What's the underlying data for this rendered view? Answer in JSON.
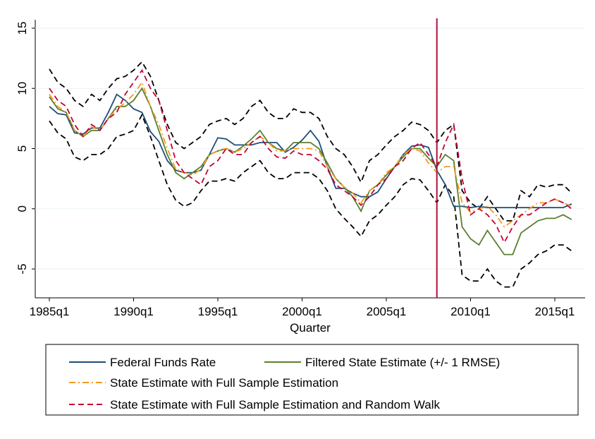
{
  "chart_data": {
    "type": "line",
    "x_label": "Quarter",
    "x": [
      "1985q1",
      "1985q3",
      "1986q1",
      "1986q3",
      "1987q1",
      "1987q3",
      "1988q1",
      "1988q3",
      "1989q1",
      "1989q3",
      "1990q1",
      "1990q3",
      "1991q1",
      "1991q3",
      "1992q1",
      "1992q3",
      "1993q1",
      "1993q3",
      "1994q1",
      "1994q3",
      "1995q1",
      "1995q3",
      "1996q1",
      "1996q3",
      "1997q1",
      "1997q3",
      "1998q1",
      "1998q3",
      "1999q1",
      "1999q3",
      "2000q1",
      "2000q3",
      "2001q1",
      "2001q3",
      "2002q1",
      "2002q3",
      "2003q1",
      "2003q3",
      "2004q1",
      "2004q3",
      "2005q1",
      "2005q3",
      "2006q1",
      "2006q3",
      "2007q1",
      "2007q3",
      "2008q1",
      "2008q3",
      "2009q1",
      "2009q3",
      "2010q1",
      "2010q3",
      "2011q1",
      "2011q3",
      "2012q1",
      "2012q3",
      "2013q1",
      "2013q3",
      "2014q1",
      "2014q3",
      "2015q1",
      "2015q3",
      "2016q1"
    ],
    "xticks": [
      "1985q1",
      "1990q1",
      "1995q1",
      "2000q1",
      "2005q1",
      "2010q1",
      "2015q1"
    ],
    "ylim": [
      -7.4,
      15.7
    ],
    "yticks": [
      -5,
      0,
      5,
      10,
      15
    ],
    "grid": true,
    "vline": "2008q1",
    "vline_color": "#b0103a",
    "series": [
      {
        "color": "#000000",
        "dash": "dashed",
        "values": [
          11.6,
          10.5,
          10.0,
          9.0,
          8.5,
          9.5,
          9.0,
          10.0,
          10.8,
          11.0,
          11.5,
          12.2,
          11.0,
          9.0,
          7.0,
          5.5,
          5.0,
          5.5,
          6.0,
          7.0,
          7.3,
          7.5,
          7.0,
          7.5,
          8.5,
          9.0,
          8.0,
          7.5,
          7.5,
          8.3,
          8.0,
          8.0,
          7.5,
          6.0,
          5.0,
          4.5,
          3.5,
          2.2,
          4.0,
          4.5,
          5.3,
          6.0,
          6.5,
          7.2,
          7.0,
          6.5,
          5.5,
          6.5,
          7.0,
          1.5,
          0.5,
          0.0,
          1.0,
          0.0,
          -1.0,
          -1.0,
          1.5,
          1.0,
          2.0,
          1.8,
          2.0,
          2.0,
          1.3
        ]
      },
      {
        "color": "#000000",
        "dash": "dashed",
        "values": [
          7.3,
          6.3,
          5.8,
          4.3,
          4.0,
          4.5,
          4.5,
          5.0,
          6.0,
          6.2,
          6.5,
          7.8,
          6.0,
          4.0,
          2.0,
          0.7,
          0.2,
          0.5,
          1.5,
          2.3,
          2.3,
          2.5,
          2.3,
          3.0,
          3.5,
          4.0,
          3.0,
          2.5,
          2.5,
          3.0,
          3.0,
          3.0,
          2.5,
          1.5,
          0.0,
          -0.8,
          -1.5,
          -2.3,
          -1.0,
          -0.5,
          0.3,
          1.0,
          2.0,
          2.5,
          2.4,
          1.5,
          0.5,
          2.0,
          1.0,
          -5.5,
          -6.0,
          -6.0,
          -5.0,
          -6.0,
          -6.5,
          -6.5,
          -5.0,
          -4.5,
          -3.8,
          -3.5,
          -3.0,
          -3.0,
          -3.5
        ]
      },
      {
        "name": "Federal Funds Rate",
        "color": "#1f4e79",
        "dash": "solid",
        "values": [
          8.5,
          7.9,
          7.8,
          6.3,
          6.2,
          6.7,
          6.7,
          8.0,
          9.5,
          9.0,
          8.3,
          8.0,
          6.4,
          5.6,
          4.0,
          3.2,
          3.0,
          3.0,
          3.2,
          4.5,
          5.9,
          5.8,
          5.3,
          5.3,
          5.3,
          5.5,
          5.5,
          5.5,
          4.7,
          5.1,
          5.7,
          6.5,
          5.6,
          3.5,
          1.7,
          1.7,
          1.3,
          1.0,
          1.0,
          1.4,
          2.5,
          3.5,
          4.5,
          5.2,
          5.3,
          5.1,
          3.2,
          2.0,
          0.2,
          0.2,
          0.1,
          0.2,
          0.1,
          0.1,
          0.1,
          0.1,
          0.1,
          0.1,
          0.1,
          0.1,
          0.1,
          0.1,
          0.4
        ]
      },
      {
        "name": "Filtered State Estimate (+/- 1 RMSE)",
        "color": "#5b7f2f",
        "dash": "solid",
        "values": [
          9.3,
          8.3,
          8.0,
          6.5,
          6.0,
          6.5,
          6.5,
          7.5,
          8.5,
          8.5,
          9.0,
          10.0,
          8.5,
          6.5,
          4.5,
          3.0,
          2.5,
          3.0,
          3.5,
          4.5,
          4.8,
          5.0,
          4.7,
          5.2,
          5.8,
          6.5,
          5.5,
          5.0,
          4.8,
          5.5,
          5.5,
          5.5,
          5.0,
          3.8,
          2.5,
          1.8,
          1.0,
          -0.2,
          1.5,
          2.0,
          2.8,
          3.5,
          4.3,
          5.0,
          5.0,
          4.2,
          3.5,
          4.5,
          4.0,
          -1.5,
          -2.5,
          -3.0,
          -1.8,
          -2.8,
          -3.8,
          -3.8,
          -2.0,
          -1.5,
          -1.0,
          -0.8,
          -0.8,
          -0.5,
          -0.9
        ]
      },
      {
        "name": "State Estimate with Full Sample Estimation",
        "color": "#f39a1e",
        "dash": "dash-dot",
        "values": [
          9.5,
          8.5,
          8.0,
          6.5,
          6.0,
          6.8,
          6.5,
          7.5,
          8.3,
          8.8,
          9.5,
          10.5,
          8.5,
          7.0,
          5.0,
          3.3,
          3.0,
          2.8,
          3.3,
          4.5,
          4.8,
          5.0,
          4.7,
          5.0,
          5.5,
          6.0,
          5.5,
          4.8,
          4.8,
          5.0,
          5.0,
          5.0,
          4.8,
          3.5,
          2.5,
          1.8,
          1.3,
          0.5,
          1.5,
          2.0,
          3.0,
          3.5,
          4.5,
          5.0,
          4.8,
          3.8,
          3.0,
          3.5,
          3.5,
          0.5,
          -0.3,
          0.0,
          0.2,
          -0.5,
          -1.5,
          -1.0,
          -0.5,
          0.0,
          0.5,
          0.5,
          0.8,
          0.5,
          0.2
        ]
      },
      {
        "name": "State Estimate with Full Sample Estimation and Random Walk",
        "color": "#c10534",
        "dash": "dashed",
        "values": [
          10.0,
          9.0,
          8.5,
          7.0,
          6.0,
          7.0,
          6.5,
          7.5,
          8.0,
          9.5,
          10.5,
          11.5,
          10.0,
          9.0,
          6.5,
          4.0,
          3.0,
          2.5,
          2.0,
          3.5,
          4.0,
          5.0,
          4.5,
          4.5,
          5.5,
          6.0,
          5.0,
          4.3,
          4.2,
          4.8,
          4.5,
          4.5,
          4.0,
          3.3,
          2.0,
          1.5,
          1.0,
          0.3,
          1.0,
          2.0,
          2.5,
          3.5,
          4.0,
          5.0,
          5.5,
          4.5,
          3.5,
          5.5,
          7.0,
          2.5,
          -0.5,
          0.0,
          -0.5,
          -1.3,
          -2.8,
          -1.5,
          -0.5,
          -0.5,
          0.0,
          0.5,
          0.8,
          0.5,
          0.0
        ]
      }
    ]
  }
}
